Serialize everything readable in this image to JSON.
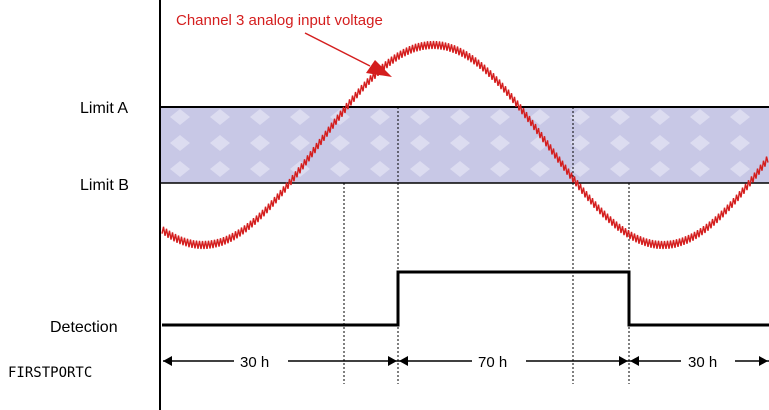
{
  "labels": {
    "signal_title": "Channel 3 analog input voltage",
    "limit_a": "Limit A",
    "limit_b": "Limit B",
    "detection": "Detection",
    "port": "FIRSTPORTC"
  },
  "intervals": [
    {
      "text": "30 h"
    },
    {
      "text": "70 h"
    },
    {
      "text": "30 h"
    }
  ],
  "colors": {
    "signal": "#d41e1e",
    "band": "#c8c8e6",
    "band_pattern": "#dadaf0",
    "line": "#000000"
  }
}
